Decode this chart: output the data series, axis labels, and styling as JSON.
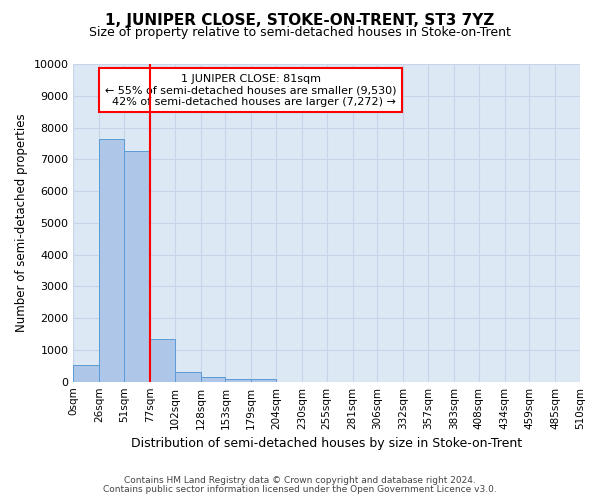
{
  "title": "1, JUNIPER CLOSE, STOKE-ON-TRENT, ST3 7YZ",
  "subtitle": "Size of property relative to semi-detached houses in Stoke-on-Trent",
  "xlabel": "Distribution of semi-detached houses by size in Stoke-on-Trent",
  "ylabel": "Number of semi-detached properties",
  "footer1": "Contains HM Land Registry data © Crown copyright and database right 2024.",
  "footer2": "Contains public sector information licensed under the Open Government Licence v3.0.",
  "property_label": "1 JUNIPER CLOSE: 81sqm",
  "pct_smaller": 55,
  "pct_larger": 42,
  "n_smaller": 9530,
  "n_larger": 7272,
  "bin_edges": [
    0,
    26,
    51,
    77,
    102,
    128,
    153,
    179,
    204,
    230,
    255,
    281,
    306,
    332,
    357,
    383,
    408,
    434,
    459,
    485,
    510
  ],
  "bar_heights": [
    530,
    7650,
    7250,
    1350,
    310,
    150,
    100,
    80,
    0,
    0,
    0,
    0,
    0,
    0,
    0,
    0,
    0,
    0,
    0,
    0
  ],
  "tick_labels": [
    "0sqm",
    "26sqm",
    "51sqm",
    "77sqm",
    "102sqm",
    "128sqm",
    "153sqm",
    "179sqm",
    "204sqm",
    "230sqm",
    "255sqm",
    "281sqm",
    "306sqm",
    "332sqm",
    "357sqm",
    "383sqm",
    "408sqm",
    "434sqm",
    "459sqm",
    "485sqm",
    "510sqm"
  ],
  "bar_color": "#aec6e8",
  "bar_edge_color": "#5b9bd5",
  "vline_color": "red",
  "vline_x": 77,
  "ylim": [
    0,
    10000
  ],
  "yticks": [
    0,
    1000,
    2000,
    3000,
    4000,
    5000,
    6000,
    7000,
    8000,
    9000,
    10000
  ],
  "grid_color": "#c8d4e8",
  "bg_color": "#dde8f5"
}
